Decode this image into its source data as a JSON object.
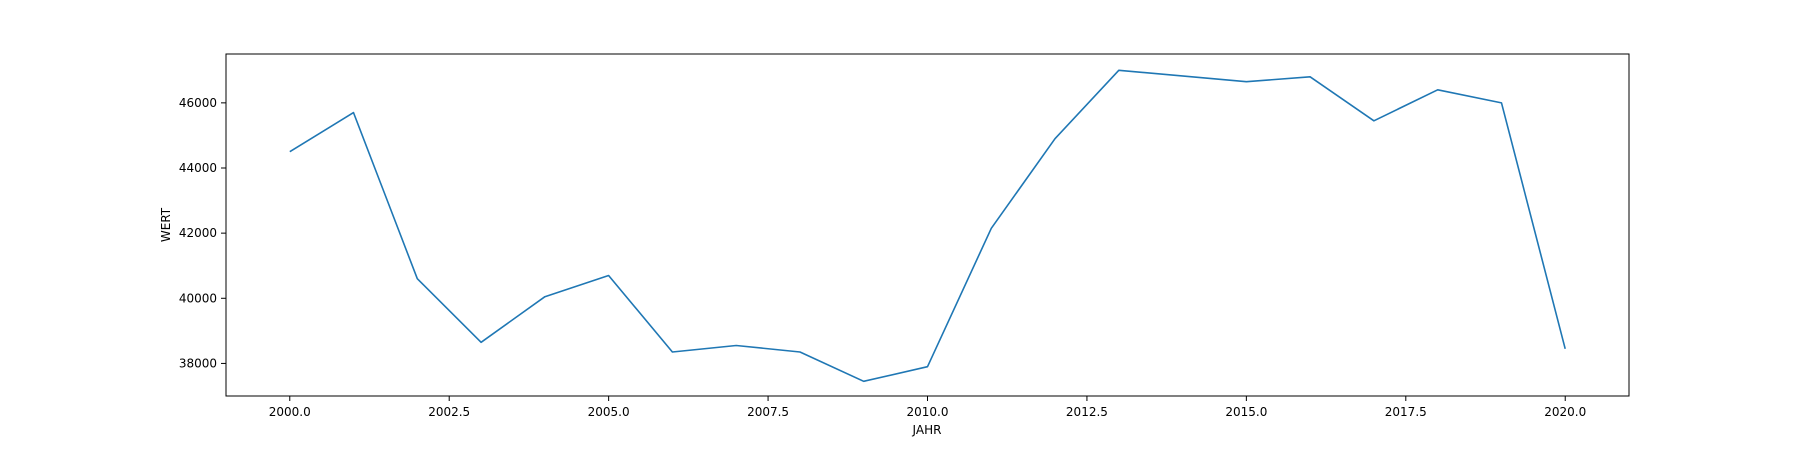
{
  "chart_data": {
    "type": "line",
    "xlabel": "JAHR",
    "ylabel": "WERT",
    "xlim": [
      1999.0,
      2021.0
    ],
    "ylim": [
      37000,
      47500
    ],
    "x_ticks": [
      2000.0,
      2002.5,
      2005.0,
      2007.5,
      2010.0,
      2012.5,
      2015.0,
      2017.5,
      2020.0
    ],
    "x_tick_labels": [
      "2000.0",
      "2002.5",
      "2005.0",
      "2007.5",
      "2010.0",
      "2012.5",
      "2015.0",
      "2017.5",
      "2020.0"
    ],
    "y_ticks": [
      38000,
      40000,
      42000,
      44000,
      46000
    ],
    "y_tick_labels": [
      "38000",
      "40000",
      "42000",
      "44000",
      "46000"
    ],
    "grid": false,
    "series": [
      {
        "color": "#1f77b4",
        "x": [
          2000,
          2001,
          2002,
          2003,
          2004,
          2005,
          2006,
          2007,
          2008,
          2009,
          2010,
          2011,
          2012,
          2013,
          2015,
          2016,
          2017,
          2018,
          2019,
          2020
        ],
        "y": [
          44500,
          45700,
          40600,
          38650,
          40050,
          40700,
          38350,
          38550,
          38350,
          37450,
          37900,
          42150,
          44900,
          47000,
          46650,
          46800,
          45450,
          46400,
          46000,
          38450
        ]
      }
    ]
  }
}
